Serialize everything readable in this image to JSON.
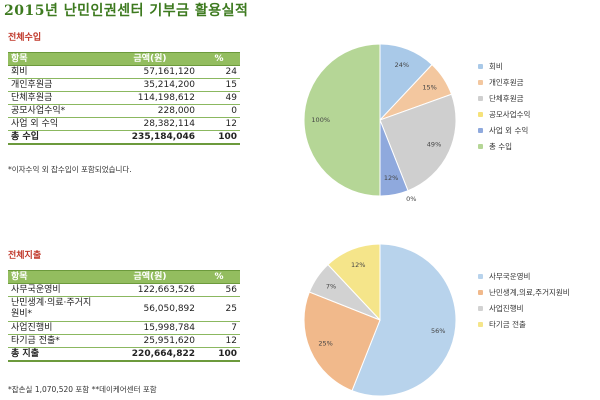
{
  "title": "2015년 난민인권센터 기부금 활용실적",
  "income": {
    "section_title": "전체수입",
    "headers": [
      "항목",
      "금액(원)",
      "%"
    ],
    "rows": [
      {
        "label": "회비",
        "amount": "57,161,120",
        "pct": "24"
      },
      {
        "label": "개인후원금",
        "amount": "35,214,200",
        "pct": "15"
      },
      {
        "label": "단체후원금",
        "amount": "114,198,612",
        "pct": "49"
      },
      {
        "label": "공모사업수익*",
        "amount": "228,000",
        "pct": "0"
      },
      {
        "label": "사업 외 수익",
        "amount": "28,382,114",
        "pct": "12"
      }
    ],
    "total": {
      "label": "총 수입",
      "amount": "235,184,046",
      "pct": "100"
    },
    "note": "*이자수익 외 잡수입이 포함되었습니다."
  },
  "expense": {
    "section_title": "전체지출",
    "headers": [
      "항목",
      "금액(원)",
      "%"
    ],
    "rows": [
      {
        "label": "사무국운영비",
        "amount": "122,663,526",
        "pct": "56"
      },
      {
        "label": "난민생계·의료·주거지원비*",
        "amount": "56,050,892",
        "pct": "25"
      },
      {
        "label": "사업진행비",
        "amount": "15,998,784",
        "pct": "7"
      },
      {
        "label": "타기금 전출*",
        "amount": "25,951,620",
        "pct": "12"
      }
    ],
    "total": {
      "label": "총 지출",
      "amount": "220,664,822",
      "pct": "100"
    },
    "note": "*잡손실 1,070,520 포함  **데이케어센터 포함"
  },
  "chart_data": [
    {
      "type": "pie",
      "title": "",
      "series": [
        {
          "name": "회비",
          "value": 24,
          "label": "24%",
          "color": "#a9c9e8"
        },
        {
          "name": "개인후원금",
          "value": 15,
          "label": "15%",
          "color": "#f3c79f"
        },
        {
          "name": "단체후원금",
          "value": 49,
          "label": "49%",
          "color": "#cfcfcf"
        },
        {
          "name": "공모사업수익",
          "value": 0,
          "label": "0%",
          "color": "#f6e27a"
        },
        {
          "name": "사업 외 수익",
          "value": 12,
          "label": "12%",
          "color": "#8fa9dd"
        },
        {
          "name": "총 수입",
          "value": 100,
          "label": "100%",
          "color": "#b5d696",
          "overlay": true
        }
      ],
      "legend_position": "right"
    },
    {
      "type": "pie",
      "title": "",
      "series": [
        {
          "name": "사무국운영비",
          "value": 56,
          "label": "56%",
          "color": "#b8d3ec"
        },
        {
          "name": "난민생계,의료,주거지원비",
          "value": 25,
          "label": "25%",
          "color": "#f1b98b"
        },
        {
          "name": "사업진행비",
          "value": 7,
          "label": "7%",
          "color": "#d2d2d2"
        },
        {
          "name": "타기금 전출",
          "value": 12,
          "label": "12%",
          "color": "#f5e58a"
        }
      ],
      "legend_position": "right"
    }
  ]
}
